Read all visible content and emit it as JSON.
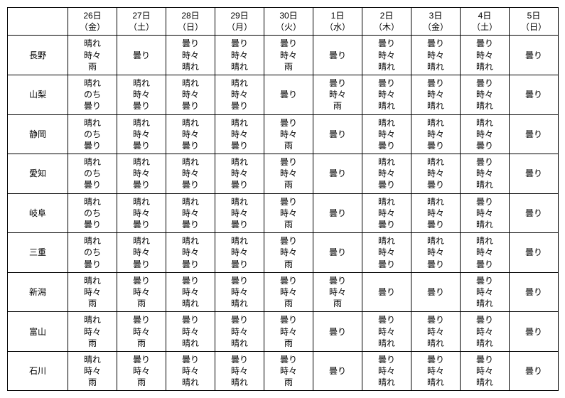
{
  "type": "table",
  "background_color": "#ffffff",
  "border_color": "#000000",
  "text_color": "#000000",
  "font_size": 12,
  "column_widths": {
    "region": 85,
    "day": 69
  },
  "columns": [
    {
      "date": "26日",
      "dow": "（金）"
    },
    {
      "date": "27日",
      "dow": "（土）"
    },
    {
      "date": "28日",
      "dow": "（日）"
    },
    {
      "date": "29日",
      "dow": "（月）"
    },
    {
      "date": "30日",
      "dow": "（火）"
    },
    {
      "date": "1日",
      "dow": "（水）"
    },
    {
      "date": "2日",
      "dow": "（木）"
    },
    {
      "date": "3日",
      "dow": "（金）"
    },
    {
      "date": "4日",
      "dow": "（土）"
    },
    {
      "date": "5日",
      "dow": "（日）"
    }
  ],
  "rows": [
    {
      "region": "長野",
      "cells": [
        [
          "晴れ",
          "時々",
          "雨"
        ],
        [
          "曇り"
        ],
        [
          "曇り",
          "時々",
          "晴れ"
        ],
        [
          "曇り",
          "時々",
          "晴れ"
        ],
        [
          "曇り",
          "時々",
          "雨"
        ],
        [
          "曇り"
        ],
        [
          "曇り",
          "時々",
          "晴れ"
        ],
        [
          "曇り",
          "時々",
          "晴れ"
        ],
        [
          "曇り",
          "時々",
          "晴れ"
        ],
        [
          "曇り"
        ]
      ]
    },
    {
      "region": "山梨",
      "cells": [
        [
          "晴れ",
          "のち",
          "曇り"
        ],
        [
          "晴れ",
          "時々",
          "曇り"
        ],
        [
          "晴れ",
          "時々",
          "曇り"
        ],
        [
          "晴れ",
          "時々",
          "曇り"
        ],
        [
          "曇り"
        ],
        [
          "曇り",
          "時々",
          "雨"
        ],
        [
          "曇り",
          "時々",
          "晴れ"
        ],
        [
          "曇り",
          "時々",
          "晴れ"
        ],
        [
          "曇り",
          "時々",
          "晴れ"
        ],
        [
          "曇り"
        ]
      ]
    },
    {
      "region": "静岡",
      "cells": [
        [
          "晴れ",
          "のち",
          "曇り"
        ],
        [
          "晴れ",
          "時々",
          "曇り"
        ],
        [
          "晴れ",
          "時々",
          "曇り"
        ],
        [
          "晴れ",
          "時々",
          "曇り"
        ],
        [
          "曇り",
          "時々",
          "雨"
        ],
        [
          "曇り"
        ],
        [
          "晴れ",
          "時々",
          "曇り"
        ],
        [
          "晴れ",
          "時々",
          "曇り"
        ],
        [
          "晴れ",
          "時々",
          "曇り"
        ],
        [
          "曇り"
        ]
      ]
    },
    {
      "region": "愛知",
      "cells": [
        [
          "晴れ",
          "のち",
          "曇り"
        ],
        [
          "晴れ",
          "時々",
          "曇り"
        ],
        [
          "晴れ",
          "時々",
          "曇り"
        ],
        [
          "晴れ",
          "時々",
          "曇り"
        ],
        [
          "曇り",
          "時々",
          "雨"
        ],
        [
          "曇り"
        ],
        [
          "晴れ",
          "時々",
          "曇り"
        ],
        [
          "晴れ",
          "時々",
          "曇り"
        ],
        [
          "曇り",
          "時々",
          "晴れ"
        ],
        [
          "曇り"
        ]
      ]
    },
    {
      "region": "岐阜",
      "cells": [
        [
          "晴れ",
          "のち",
          "曇り"
        ],
        [
          "晴れ",
          "時々",
          "曇り"
        ],
        [
          "晴れ",
          "時々",
          "曇り"
        ],
        [
          "晴れ",
          "時々",
          "曇り"
        ],
        [
          "曇り",
          "時々",
          "雨"
        ],
        [
          "曇り"
        ],
        [
          "晴れ",
          "時々",
          "曇り"
        ],
        [
          "晴れ",
          "時々",
          "曇り"
        ],
        [
          "曇り",
          "時々",
          "晴れ"
        ],
        [
          "曇り"
        ]
      ]
    },
    {
      "region": "三重",
      "cells": [
        [
          "晴れ",
          "のち",
          "曇り"
        ],
        [
          "晴れ",
          "時々",
          "曇り"
        ],
        [
          "晴れ",
          "時々",
          "曇り"
        ],
        [
          "晴れ",
          "時々",
          "曇り"
        ],
        [
          "曇り",
          "時々",
          "雨"
        ],
        [
          "曇り"
        ],
        [
          "晴れ",
          "時々",
          "曇り"
        ],
        [
          "晴れ",
          "時々",
          "曇り"
        ],
        [
          "晴れ",
          "時々",
          "曇り"
        ],
        [
          "曇り"
        ]
      ]
    },
    {
      "region": "新潟",
      "cells": [
        [
          "晴れ",
          "時々",
          "雨"
        ],
        [
          "曇り",
          "時々",
          "雨"
        ],
        [
          "曇り",
          "時々",
          "晴れ"
        ],
        [
          "曇り",
          "時々",
          "晴れ"
        ],
        [
          "曇り",
          "時々",
          "雨"
        ],
        [
          "曇り",
          "時々",
          "雨"
        ],
        [
          "曇り"
        ],
        [
          "曇り"
        ],
        [
          "曇り",
          "時々",
          "晴れ"
        ],
        [
          "曇り"
        ]
      ]
    },
    {
      "region": "富山",
      "cells": [
        [
          "晴れ",
          "時々",
          "雨"
        ],
        [
          "曇り",
          "時々",
          "雨"
        ],
        [
          "曇り",
          "時々",
          "晴れ"
        ],
        [
          "曇り",
          "時々",
          "晴れ"
        ],
        [
          "曇り",
          "時々",
          "雨"
        ],
        [
          "曇り"
        ],
        [
          "曇り",
          "時々",
          "晴れ"
        ],
        [
          "曇り",
          "時々",
          "晴れ"
        ],
        [
          "曇り",
          "時々",
          "晴れ"
        ],
        [
          "曇り"
        ]
      ]
    },
    {
      "region": "石川",
      "cells": [
        [
          "晴れ",
          "時々",
          "雨"
        ],
        [
          "曇り",
          "時々",
          "雨"
        ],
        [
          "曇り",
          "時々",
          "晴れ"
        ],
        [
          "曇り",
          "時々",
          "晴れ"
        ],
        [
          "曇り",
          "時々",
          "雨"
        ],
        [
          "曇り"
        ],
        [
          "曇り",
          "時々",
          "晴れ"
        ],
        [
          "曇り",
          "時々",
          "晴れ"
        ],
        [
          "曇り",
          "時々",
          "晴れ"
        ],
        [
          "曇り"
        ]
      ]
    }
  ]
}
